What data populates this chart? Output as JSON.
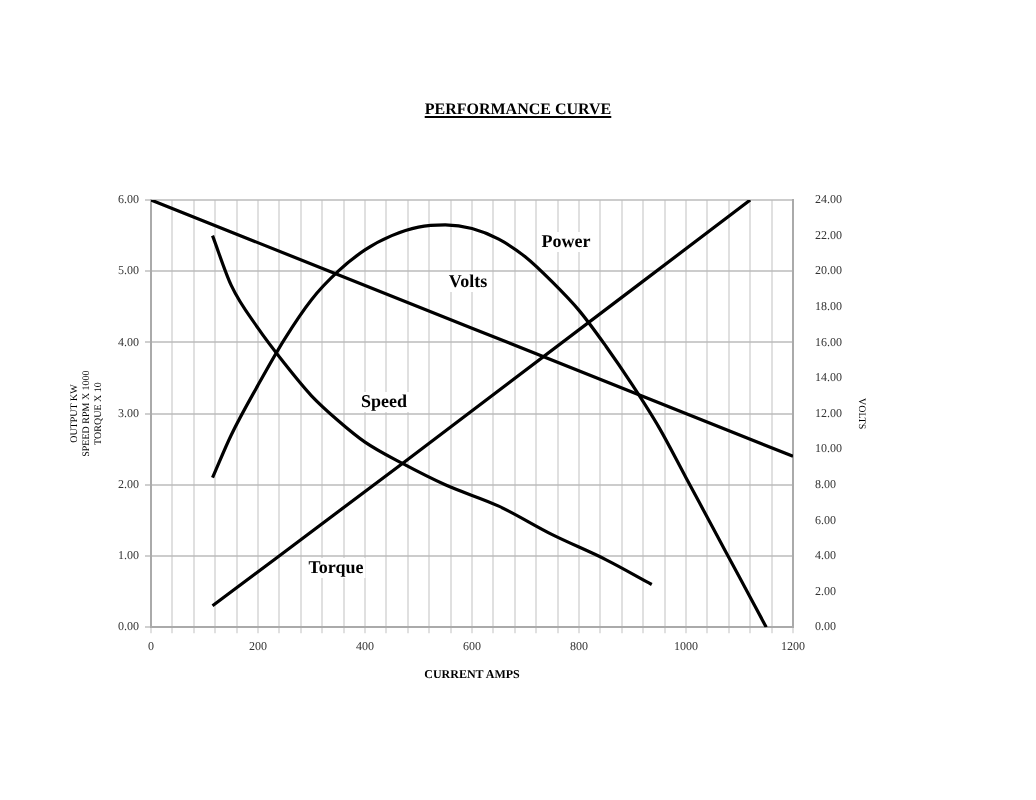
{
  "chart_data": {
    "type": "line",
    "title": "PERFORMANCE CURVE",
    "xlabel": "CURRENT AMPS",
    "ylabel": "OUTPUT KW\nSPEED RPM X 1000\nTORQUE X 10",
    "y2label": "VOLTS",
    "xlim": [
      0,
      1200
    ],
    "xticks": [
      0,
      {
        "value": 40,
        "label": null
      },
      {
        "value": 80,
        "label": null
      },
      {
        "value": 120,
        "label": null
      },
      {
        "value": 160,
        "label": null
      },
      200,
      {
        "value": 240,
        "label": null
      },
      {
        "value": 280,
        "label": null
      },
      {
        "value": 320,
        "label": null
      },
      {
        "value": 360,
        "label": null
      },
      400,
      {
        "value": 440,
        "label": null
      },
      {
        "value": 480,
        "label": null
      },
      {
        "value": 520,
        "label": null
      },
      {
        "value": 560,
        "label": null
      },
      600,
      {
        "value": 640,
        "label": null
      },
      {
        "value": 680,
        "label": null
      },
      {
        "value": 720,
        "label": null
      },
      {
        "value": 760,
        "label": null
      },
      800,
      {
        "value": 840,
        "label": null
      },
      {
        "value": 880,
        "label": null
      },
      {
        "value": 920,
        "label": null
      },
      {
        "value": 960,
        "label": null
      },
      1000,
      {
        "value": 1040,
        "label": null
      },
      {
        "value": 1080,
        "label": null
      },
      {
        "value": 1120,
        "label": null
      },
      {
        "value": 1160,
        "label": null
      },
      1200
    ],
    "ylim": [
      0,
      6
    ],
    "yticks": [
      {
        "value": 0,
        "label": "0.00"
      },
      {
        "value": 1,
        "label": "1.00"
      },
      {
        "value": 2,
        "label": "2.00"
      },
      {
        "value": 3,
        "label": "3.00"
      },
      {
        "value": 4,
        "label": "4.00"
      },
      {
        "value": 5,
        "label": "5.00"
      },
      {
        "value": 6,
        "label": "6.00"
      }
    ],
    "y2lim": [
      0,
      24
    ],
    "y2ticks": [
      {
        "value": 0,
        "label": "0.00"
      },
      {
        "value": 2,
        "label": "2.00"
      },
      {
        "value": 4,
        "label": "4.00"
      },
      {
        "value": 6,
        "label": "6.00"
      },
      {
        "value": 8,
        "label": "8.00"
      },
      {
        "value": 10,
        "label": "10.00"
      },
      {
        "value": 12,
        "label": "12.00"
      },
      {
        "value": 14,
        "label": "14.00"
      },
      {
        "value": 16,
        "label": "16.00"
      },
      {
        "value": 18,
        "label": "18.00"
      },
      {
        "value": 20,
        "label": "20.00"
      },
      {
        "value": 22,
        "label": "22.00"
      },
      {
        "value": 24,
        "label": "24.00"
      }
    ],
    "grid": true,
    "legend": false,
    "marker": "none",
    "line_style": "solid",
    "series": [
      {
        "name": "Power",
        "color": "#000000",
        "x": [
          115,
          150,
          200,
          250,
          300,
          350,
          400,
          450,
          500,
          550,
          600,
          650,
          700,
          750,
          800,
          850,
          900,
          950,
          1000,
          1050,
          1100,
          1150
        ],
        "values": [
          2.1,
          2.7,
          3.4,
          4.05,
          4.6,
          5.0,
          5.3,
          5.5,
          5.62,
          5.65,
          5.6,
          5.45,
          5.2,
          4.85,
          4.45,
          3.95,
          3.4,
          2.8,
          2.1,
          1.4,
          0.7,
          0
        ]
      },
      {
        "name": "Volts",
        "color": "#000000",
        "axis": "y2",
        "x": [
          0,
          600,
          1200
        ],
        "values": [
          24,
          16.8,
          9.6
        ]
      },
      {
        "name": "Speed",
        "color": "#000000",
        "x": [
          115,
          150,
          200,
          250,
          300,
          350,
          400,
          470,
          550,
          650,
          750,
          850,
          936
        ],
        "values": [
          5.5,
          4.8,
          4.2,
          3.7,
          3.25,
          2.9,
          2.6,
          2.3,
          2.0,
          1.7,
          1.3,
          0.95,
          0.6
        ]
      },
      {
        "name": "Torque",
        "color": "#000000",
        "x": [
          115,
          470,
          1120
        ],
        "values": [
          0.3,
          2.3,
          6.0
        ]
      }
    ]
  }
}
